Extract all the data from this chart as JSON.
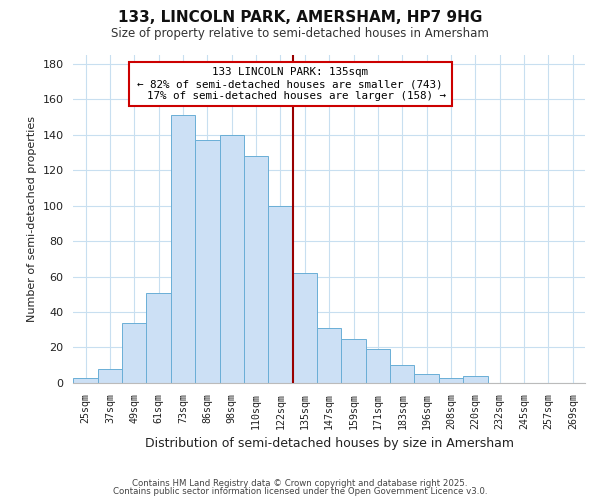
{
  "title": "133, LINCOLN PARK, AMERSHAM, HP7 9HG",
  "subtitle": "Size of property relative to semi-detached houses in Amersham",
  "xlabel": "Distribution of semi-detached houses by size in Amersham",
  "ylabel": "Number of semi-detached properties",
  "bar_color": "#cce0f5",
  "bar_edge_color": "#6aaed6",
  "categories": [
    "25sqm",
    "37sqm",
    "49sqm",
    "61sqm",
    "73sqm",
    "86sqm",
    "98sqm",
    "110sqm",
    "122sqm",
    "135sqm",
    "147sqm",
    "159sqm",
    "171sqm",
    "183sqm",
    "196sqm",
    "208sqm",
    "220sqm",
    "232sqm",
    "245sqm",
    "257sqm",
    "269sqm"
  ],
  "values": [
    3,
    8,
    34,
    51,
    151,
    137,
    140,
    128,
    100,
    62,
    31,
    25,
    19,
    10,
    5,
    3,
    4,
    0,
    0,
    0,
    0
  ],
  "property_label": "133 LINCOLN PARK: 135sqm",
  "pct_smaller": 82,
  "n_smaller": 743,
  "pct_larger": 17,
  "n_larger": 158,
  "vline_color": "#990000",
  "annotation_box_edge": "#cc0000",
  "ylim": [
    0,
    185
  ],
  "yticks": [
    0,
    20,
    40,
    60,
    80,
    100,
    120,
    140,
    160,
    180
  ],
  "footer1": "Contains HM Land Registry data © Crown copyright and database right 2025.",
  "footer2": "Contains public sector information licensed under the Open Government Licence v3.0.",
  "background_color": "#ffffff",
  "grid_color": "#c8dff0"
}
